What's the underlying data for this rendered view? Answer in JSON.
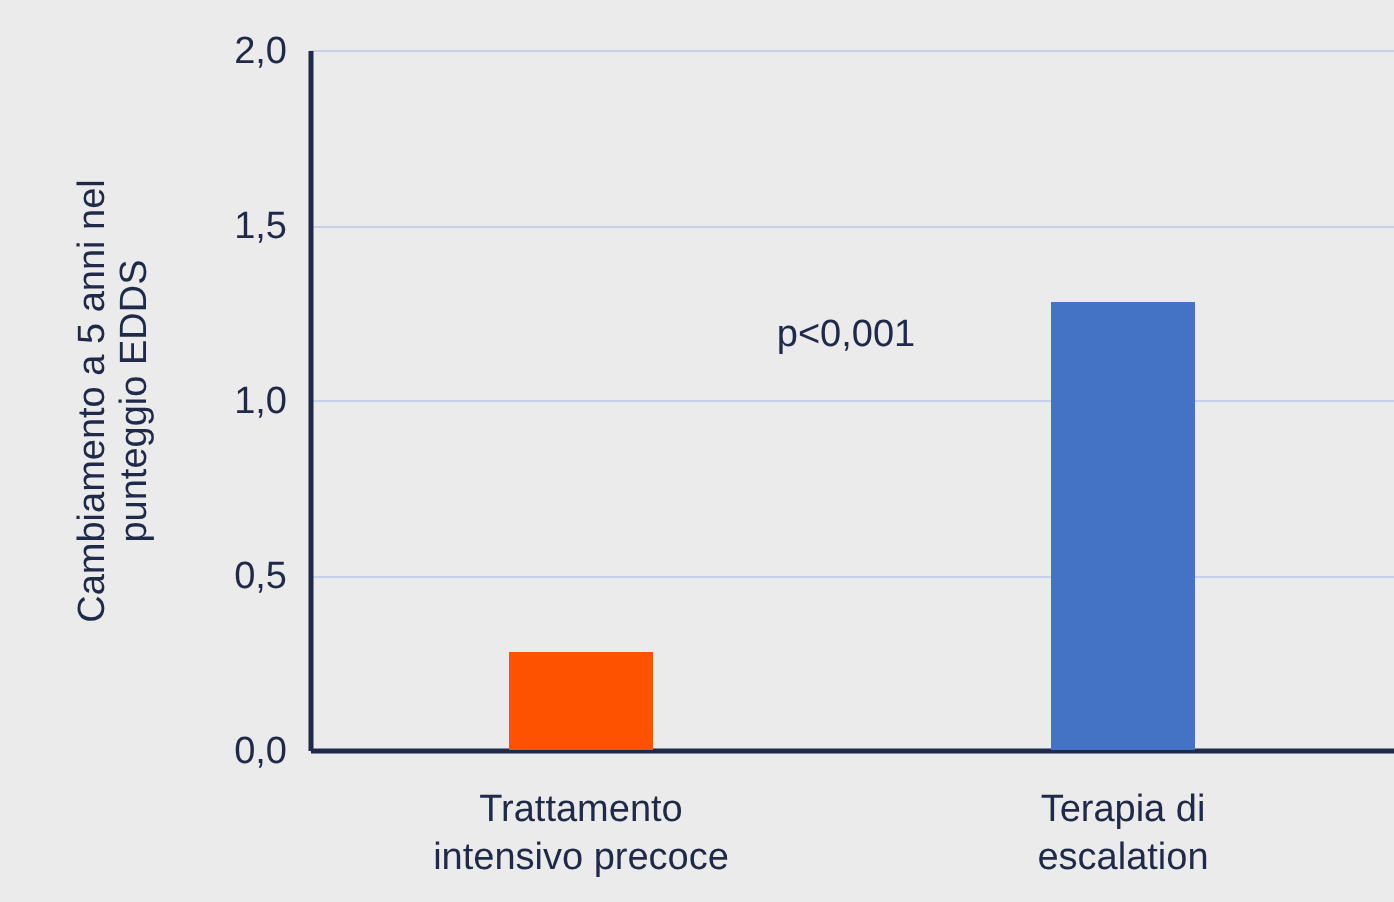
{
  "chart_data": {
    "type": "bar",
    "ylabel": "Cambiamento a 5 anni nel\npunteggio EDDS",
    "categories": [
      "Trattamento\nintensivo precoce",
      "Terapia di\nescalation"
    ],
    "values": [
      0.28,
      1.28
    ],
    "colors": [
      "#ff5200",
      "#4472c4"
    ],
    "ylim": [
      0,
      2
    ],
    "yticks": [
      {
        "value": 0,
        "label": "0,0"
      },
      {
        "value": 0.5,
        "label": "0,5"
      },
      {
        "value": 1,
        "label": "1,0"
      },
      {
        "value": 1.5,
        "label": "1,5"
      },
      {
        "value": 2,
        "label": "2,0"
      }
    ],
    "grid": "y",
    "annotations": [
      "p<0,001"
    ]
  }
}
